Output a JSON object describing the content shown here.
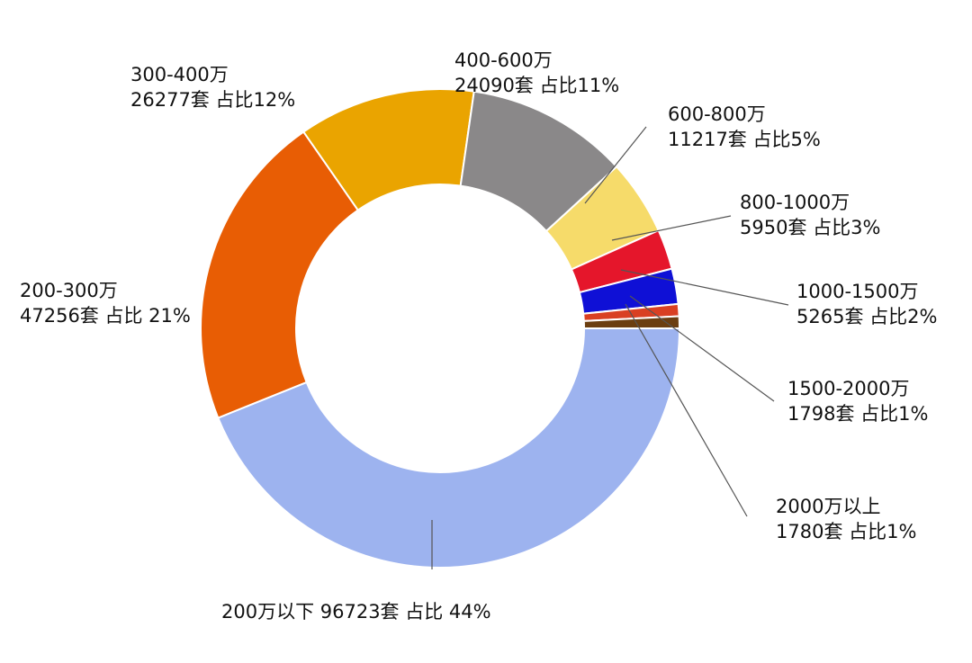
{
  "chart_data": {
    "type": "pie",
    "variant": "donut",
    "title": "",
    "colors": [
      "#9db3ef",
      "#e85d04",
      "#eaa400",
      "#8a8889",
      "#f6db6a",
      "#e5162b",
      "#0f10d6",
      "#d94023",
      "#6b3e10"
    ],
    "slices": [
      {
        "category": "200万以下",
        "count": 96723,
        "unit": "套",
        "percent_label": "占比 44%",
        "label_lines": [
          "200万以下 96723套 占比 44%"
        ]
      },
      {
        "category": "200-300万",
        "count": 47256,
        "unit": "套",
        "percent_label": "占比 21%",
        "label_lines": [
          "200-300万",
          "47256套 占比 21%"
        ]
      },
      {
        "category": "300-400万",
        "count": 26277,
        "unit": "套",
        "percent_label": "占比12%",
        "label_lines": [
          "300-400万",
          "26277套 占比12%"
        ]
      },
      {
        "category": "400-600万",
        "count": 24090,
        "unit": "套",
        "percent_label": "占比11%",
        "label_lines": [
          "400-600万",
          "24090套 占比11%"
        ]
      },
      {
        "category": "600-800万",
        "count": 11217,
        "unit": "套",
        "percent_label": "占比5%",
        "label_lines": [
          "600-800万",
          "11217套 占比5%"
        ]
      },
      {
        "category": "800-1000万",
        "count": 5950,
        "unit": "套",
        "percent_label": "占比3%",
        "label_lines": [
          "800-1000万",
          "5950套 占比3%"
        ]
      },
      {
        "category": "1000-1500万",
        "count": 5265,
        "unit": "套",
        "percent_label": "占比2%",
        "label_lines": [
          "1000-1500万",
          "5265套 占比2%"
        ]
      },
      {
        "category": "1500-2000万",
        "count": 1798,
        "unit": "套",
        "percent_label": "占比1%",
        "label_lines": [
          "1500-2000万",
          "1798套 占比1%"
        ]
      },
      {
        "category": "2000万以上",
        "count": 1780,
        "unit": "套",
        "percent_label": "占比1%",
        "label_lines": [
          "2000万以上",
          "1780套 占比1%"
        ]
      }
    ],
    "legend": "none"
  }
}
